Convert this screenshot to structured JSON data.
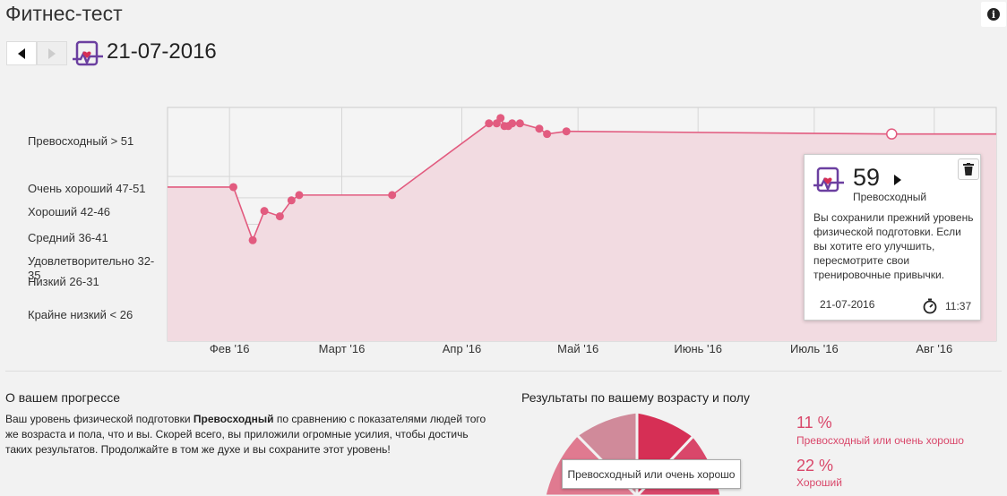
{
  "header": {
    "title": "Фитнес-тест",
    "date": "21-07-2016",
    "info_icon": "info-icon"
  },
  "nav": {
    "prev_icon": "arrow-left-icon",
    "next_icon": "arrow-right-icon"
  },
  "chart_data": {
    "type": "line",
    "y_categories": [
      "Превосходный > 51",
      "Очень хороший 47-51",
      "Хороший 42-46",
      "Средний 36-41",
      "Удовлетворительно 32-35",
      "Низкий 26-31",
      "Крайне низкий < 26"
    ],
    "x_ticks": [
      "Фев '16",
      "Март '16",
      "Апр '16",
      "Май '16",
      "Июнь '16",
      "Июль '16",
      "Авг '16"
    ],
    "x_range": [
      "2016-01-16",
      "2016-08-17"
    ],
    "y_range": [
      20,
      64
    ],
    "series": [
      {
        "points": [
          {
            "x": "2016-02-02",
            "y": 49
          },
          {
            "x": "2016-02-07",
            "y": 39
          },
          {
            "x": "2016-02-10",
            "y": 44.5
          },
          {
            "x": "2016-02-14",
            "y": 43.5
          },
          {
            "x": "2016-02-17",
            "y": 46.5
          },
          {
            "x": "2016-02-19",
            "y": 47.5
          },
          {
            "x": "2016-03-14",
            "y": 47.5
          },
          {
            "x": "2016-04-08",
            "y": 61
          },
          {
            "x": "2016-04-10",
            "y": 61
          },
          {
            "x": "2016-04-11",
            "y": 62
          },
          {
            "x": "2016-04-12",
            "y": 60.5
          },
          {
            "x": "2016-04-13",
            "y": 60.5
          },
          {
            "x": "2016-04-14",
            "y": 61
          },
          {
            "x": "2016-04-16",
            "y": 61
          },
          {
            "x": "2016-04-21",
            "y": 60
          },
          {
            "x": "2016-04-23",
            "y": 59
          },
          {
            "x": "2016-04-28",
            "y": 59.5
          },
          {
            "x": "2016-07-21",
            "y": 59,
            "selected": true
          }
        ]
      }
    ],
    "line_color": "#e25b7f",
    "fill_color": "#f2dbe1"
  },
  "tooltip": {
    "score": "59",
    "level": "Превосходный",
    "text": "Вы сохранили прежний уровень физической подготовки. Если вы хотите его улучшить, пересмотрите свои тренировочные привычки.",
    "date": "21-07-2016",
    "time": "11:37",
    "trash_icon": "trash-icon",
    "clock_icon": "stopwatch-icon"
  },
  "progress": {
    "title": "О вашем прогрессе",
    "text_pre": "Ваш уровень физической подготовки ",
    "text_bold": "Превосходный",
    "text_post": " по сравнению с показателями людей того же возраста и пола, что и вы. Скорей всего, вы приложили огромные усилия, чтобы достичь таких результатов. Продолжайте в том же духе и вы сохраните этот уровень!"
  },
  "results": {
    "title": "Результаты по вашему возрасту и полу",
    "tooltip": "Превосходный или очень хорошо",
    "stats": [
      {
        "pct": "11 %",
        "label": "Превосходный или очень хорошо"
      },
      {
        "pct": "22 %",
        "label": "Хороший"
      }
    ],
    "colors": [
      "#d62f55",
      "#e07a90",
      "#d08a9a"
    ]
  }
}
